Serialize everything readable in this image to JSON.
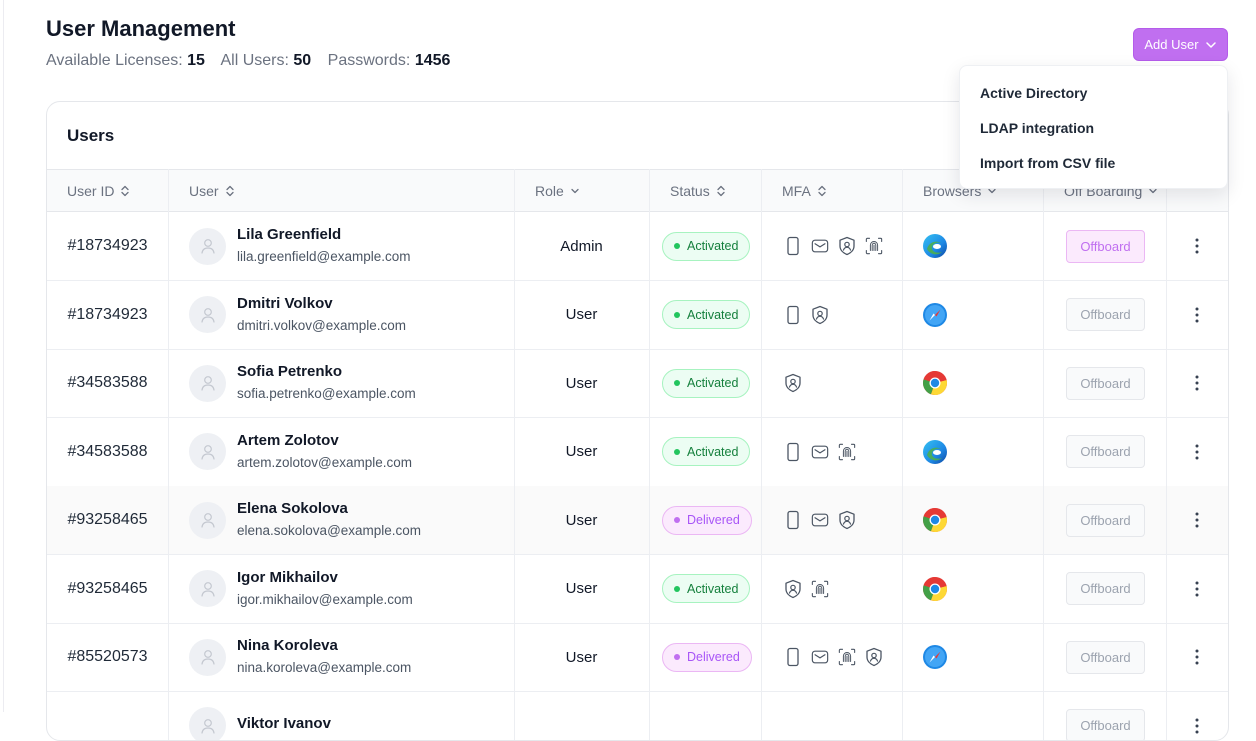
{
  "header": {
    "title": "User Management",
    "stats": [
      {
        "label": "Available Licenses:",
        "value": "15"
      },
      {
        "label": "All Users:",
        "value": "50"
      },
      {
        "label": "Passwords:",
        "value": "1456"
      }
    ],
    "add_user_label": "Add User"
  },
  "dropdown": {
    "items": [
      "Active Directory",
      "LDAP integration",
      "Import from CSV file"
    ]
  },
  "table": {
    "title": "Users",
    "columns": [
      "User ID",
      "User",
      "Role",
      "Status",
      "MFA",
      "Browsers",
      "Off Boarding"
    ],
    "offboard_label": "Offboard",
    "rows": [
      {
        "id": "#18734923",
        "name": "Lila Greenfield",
        "email": "lila.greenfield@example.com",
        "role": "Admin",
        "status": "Activated",
        "status_kind": "activated",
        "mfa": [
          "phone-icon",
          "mail-icon",
          "shield-user-icon",
          "fingerprint-icon"
        ],
        "browser": "edge-icon",
        "offboard_active": true
      },
      {
        "id": "#18734923",
        "name": "Dmitri Volkov",
        "email": "dmitri.volkov@example.com",
        "role": "User",
        "status": "Activated",
        "status_kind": "activated",
        "mfa": [
          "phone-icon",
          "shield-user-icon"
        ],
        "browser": "safari-icon",
        "offboard_active": false
      },
      {
        "id": "#34583588",
        "name": "Sofia Petrenko",
        "email": "sofia.petrenko@example.com",
        "role": "User",
        "status": "Activated",
        "status_kind": "activated",
        "mfa": [
          "shield-user-icon"
        ],
        "browser": "chrome-icon",
        "offboard_active": false
      },
      {
        "id": "#34583588",
        "name": "Artem Zolotov",
        "email": "artem.zolotov@example.com",
        "role": "User",
        "status": "Activated",
        "status_kind": "activated",
        "mfa": [
          "phone-icon",
          "mail-icon",
          "fingerprint-icon"
        ],
        "browser": "edge-icon",
        "offboard_active": false
      },
      {
        "id": "#93258465",
        "name": "Elena Sokolova",
        "email": "elena.sokolova@example.com",
        "role": "User",
        "status": "Delivered",
        "status_kind": "delivered",
        "mfa": [
          "phone-icon",
          "mail-icon",
          "shield-user-icon"
        ],
        "browser": "chrome-icon",
        "offboard_active": false
      },
      {
        "id": "#93258465",
        "name": "Igor Mikhailov",
        "email": "igor.mikhailov@example.com",
        "role": "User",
        "status": "Activated",
        "status_kind": "activated",
        "mfa": [
          "shield-user-icon",
          "fingerprint-icon"
        ],
        "browser": "chrome-icon",
        "offboard_active": false
      },
      {
        "id": "#85520573",
        "name": "Nina Koroleva",
        "email": "nina.koroleva@example.com",
        "role": "User",
        "status": "Delivered",
        "status_kind": "delivered",
        "mfa": [
          "phone-icon",
          "mail-icon",
          "fingerprint-icon",
          "shield-user-icon"
        ],
        "browser": "safari-icon",
        "offboard_active": false
      },
      {
        "id": "",
        "name": "Viktor Ivanov",
        "email": "",
        "role": "",
        "status": "",
        "status_kind": "activated",
        "mfa": [],
        "browser": "",
        "offboard_active": false
      }
    ]
  },
  "colors": {
    "accent": "#c06ff0",
    "activated": "#22c55e",
    "delivered": "#a855f7"
  }
}
